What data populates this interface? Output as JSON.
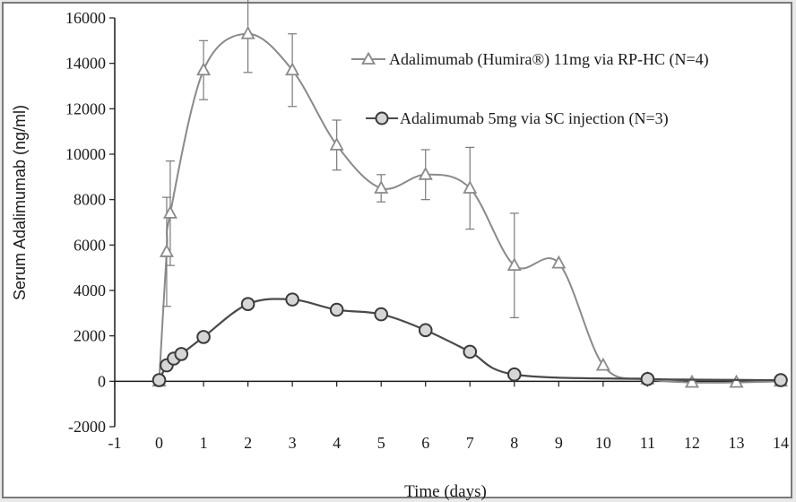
{
  "chart_data": {
    "type": "line",
    "xlabel": "Time (days)",
    "ylabel": "Serum Adalimumab (ng/ml)",
    "xlim": [
      -1,
      14
    ],
    "ylim": [
      -2000,
      16000
    ],
    "x_ticks": [
      "-1",
      "0",
      "1",
      "2",
      "3",
      "4",
      "5",
      "6",
      "7",
      "8",
      "9",
      "10",
      "11",
      "12",
      "13",
      "14"
    ],
    "y_ticks": [
      "-2000",
      "0",
      "2000",
      "4000",
      "6000",
      "8000",
      "10000",
      "12000",
      "14000",
      "16000"
    ],
    "grid": false,
    "legend_position": "top-right",
    "series": [
      {
        "name": "Adalimumab (Humira®) 11mg via RP-HC (N=4)",
        "marker": "triangle",
        "color": "#8a8a8a",
        "x": [
          0,
          0.17,
          0.25,
          1,
          2,
          3,
          4,
          5,
          6,
          7,
          8,
          9,
          10,
          11,
          12,
          13,
          14
        ],
        "y": [
          0,
          5700,
          7400,
          13700,
          15300,
          13700,
          10400,
          8500,
          9100,
          8500,
          5100,
          5200,
          700,
          100,
          -50,
          -50,
          0
        ],
        "error": [
          0,
          2400,
          2300,
          1300,
          1700,
          1600,
          1100,
          600,
          1100,
          1800,
          2300,
          0,
          0,
          0,
          0,
          0,
          0
        ]
      },
      {
        "name": "Adalimumab 5mg via SC injection (N=3)",
        "marker": "circle",
        "color": "#4a4a4a",
        "x": [
          0,
          0.17,
          0.33,
          0.5,
          1,
          2,
          3,
          4,
          5,
          6,
          7,
          8,
          11,
          14
        ],
        "y": [
          50,
          700,
          1000,
          1200,
          1950,
          3400,
          3600,
          3150,
          2950,
          2250,
          1300,
          300,
          100,
          50
        ]
      }
    ]
  }
}
